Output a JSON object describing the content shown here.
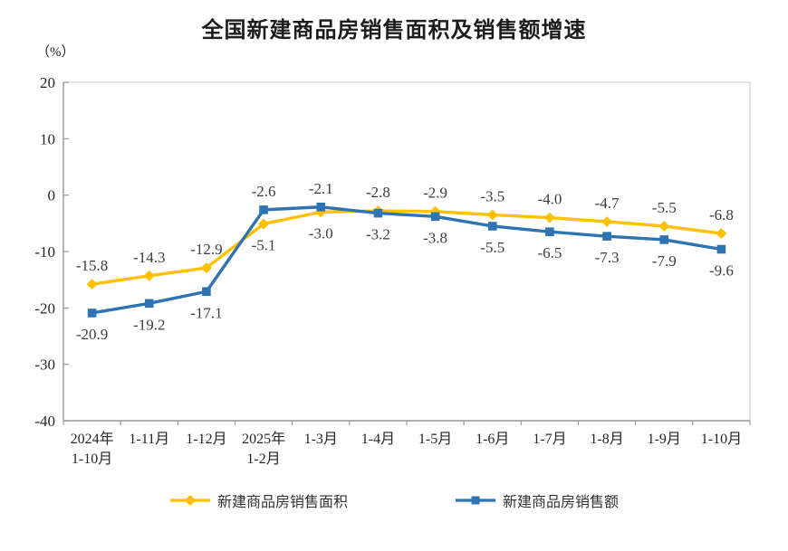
{
  "chart_data": {
    "type": "line",
    "title": "全国新建商品房销售面积及销售额增速",
    "unit_label": "（%）",
    "categories": [
      [
        "2024年",
        "1-10月"
      ],
      [
        "1-11月"
      ],
      [
        "1-12月"
      ],
      [
        "2025年",
        "1-2月"
      ],
      [
        "1-3月"
      ],
      [
        "1-4月"
      ],
      [
        "1-5月"
      ],
      [
        "1-6月"
      ],
      [
        "1-7月"
      ],
      [
        "1-8月"
      ],
      [
        "1-9月"
      ],
      [
        "1-10月"
      ]
    ],
    "series": [
      {
        "id": "sales-area",
        "name": "新建商品房销售面积",
        "color": "#FFC000",
        "marker": "diamond",
        "values": [
          -15.8,
          -14.3,
          -12.9,
          -5.1,
          -3.0,
          -2.8,
          -2.9,
          -3.5,
          -4.0,
          -4.7,
          -5.5,
          -6.8
        ]
      },
      {
        "id": "sales-amount",
        "name": "新建商品房销售额",
        "color": "#2E74B5",
        "marker": "square",
        "values": [
          -20.9,
          -19.2,
          -17.1,
          -2.6,
          -2.1,
          -3.2,
          -3.8,
          -5.5,
          -6.5,
          -7.3,
          -7.9,
          -9.6
        ]
      }
    ],
    "ylim": [
      -40,
      20
    ],
    "yticks": [
      20,
      10,
      0,
      -10,
      -20,
      -30,
      -40
    ],
    "grid": false,
    "legend_position": "bottom",
    "label_decimals": 1,
    "colors": {
      "axis": "#9c9c9c",
      "plot_border": "#d9d9d9",
      "tick_label": "#262626",
      "data_label": "#3d3d3d",
      "background": "#ffffff"
    }
  }
}
